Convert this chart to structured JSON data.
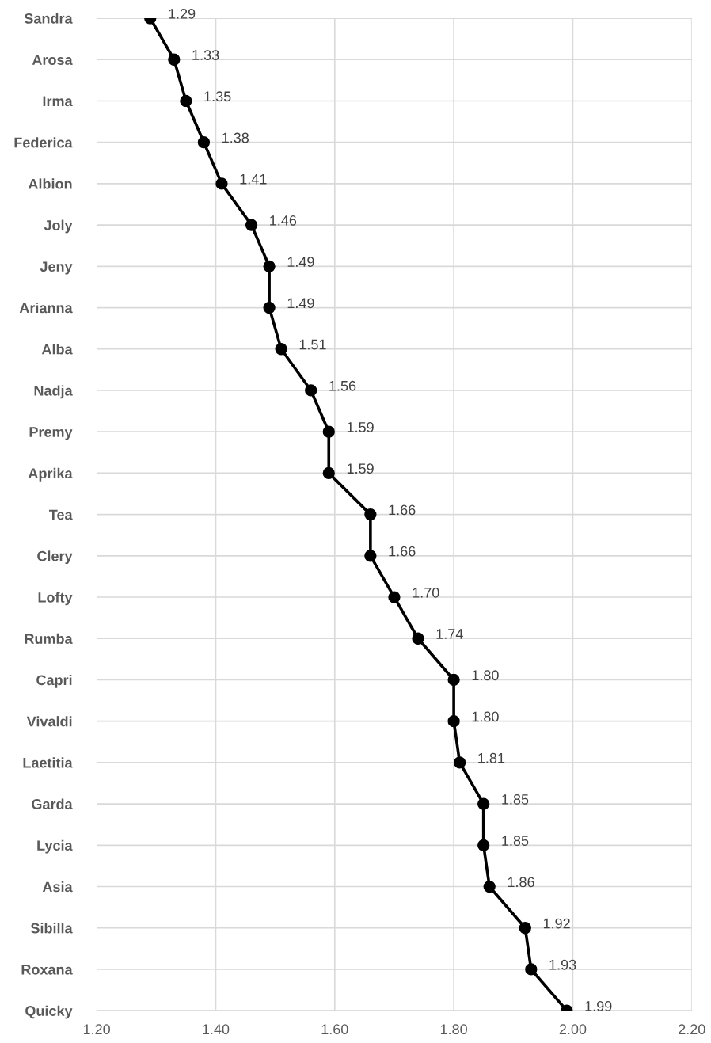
{
  "chart_data": {
    "type": "line",
    "orientation": "horizontal",
    "categories": [
      "Sandra",
      "Arosa",
      "Irma",
      "Federica",
      "Albion",
      "Joly",
      "Jeny",
      "Arianna",
      "Alba",
      "Nadja",
      "Premy",
      "Aprika",
      "Tea",
      "Clery",
      "Lofty",
      "Rumba",
      "Capri",
      "Vivaldi",
      "Laetitia",
      "Garda",
      "Lycia",
      "Asia",
      "Sibilla",
      "Roxana",
      "Quicky"
    ],
    "series": [
      {
        "color": "#000000",
        "values": [
          1.29,
          1.33,
          1.35,
          1.38,
          1.41,
          1.46,
          1.49,
          1.49,
          1.51,
          1.56,
          1.59,
          1.59,
          1.66,
          1.66,
          1.7,
          1.74,
          1.8,
          1.8,
          1.81,
          1.85,
          1.85,
          1.86,
          1.92,
          1.93,
          1.99
        ],
        "value_labels": [
          "1.29",
          "1.33",
          "1.35",
          "1.38",
          "1.41",
          "1.46",
          "1.49",
          "1.49",
          "1.51",
          "1.56",
          "1.59",
          "1.59",
          "1.66",
          "1.66",
          "1.70",
          "1.74",
          "1.80",
          "1.80",
          "1.81",
          "1.85",
          "1.85",
          "1.86",
          "1.92",
          "1.93",
          "1.99"
        ]
      }
    ],
    "xlim": [
      1.2,
      2.2
    ],
    "xticks": [
      {
        "value": 1.2,
        "label": "1.20"
      },
      {
        "value": 1.4,
        "label": "1.40"
      },
      {
        "value": 1.6,
        "label": "1.60"
      },
      {
        "value": 1.8,
        "label": "1.80"
      },
      {
        "value": 2.0,
        "label": "2.00"
      },
      {
        "value": 2.2,
        "label": "2.20"
      }
    ],
    "grid": true,
    "marker": "circle",
    "line_style": "solid",
    "legend": false
  }
}
